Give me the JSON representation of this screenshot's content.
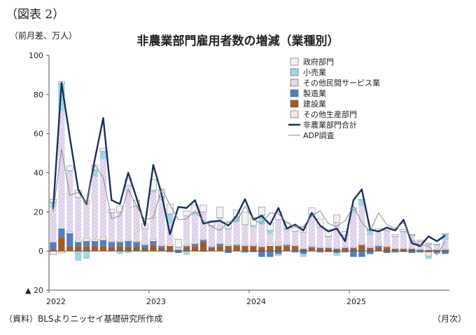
{
  "figure_label": "（図表 2）",
  "unit_label": "（前月差、万人）",
  "source_note": "（資料）BLSよりニッセイ基礎研究所作成",
  "x_unit_label": "（月次）",
  "chart_data": {
    "type": "bar",
    "stacked": true,
    "title": "非農業部門雇用者数の増減（業種別）",
    "ylim": [
      -20,
      100
    ],
    "yticks": [
      -20,
      0,
      20,
      40,
      60,
      80,
      100
    ],
    "ytick_labels": [
      "▲ 20",
      "0",
      "20",
      "40",
      "60",
      "80",
      "100"
    ],
    "x_tick_labels": [
      {
        "label": "2022",
        "index": 0
      },
      {
        "label": "2023",
        "index": 12
      },
      {
        "label": "2024",
        "index": 24
      },
      {
        "label": "2025",
        "index": 36
      }
    ],
    "grid": false,
    "legend_position": "top-right",
    "series": [
      {
        "name": "政府部門",
        "kind": "bar",
        "color": "#f2f2f2",
        "values": [
          1.5,
          1.0,
          2.5,
          3.5,
          1.5,
          2.5,
          1.5,
          2.0,
          3.0,
          3.5,
          3.0,
          2.5,
          5.5,
          3.5,
          5.0,
          4.0,
          2.5,
          4.0,
          3.5,
          2.5,
          5.5,
          3.5,
          3.5,
          6.5,
          4.0,
          4.0,
          4.0,
          4.0,
          3.0,
          2.0,
          2.5,
          3.0,
          4.5,
          3.5,
          4.0,
          2.0,
          0.5,
          0.5,
          0.5,
          1.0,
          1.0,
          1.0,
          1.0,
          0.5,
          0.5,
          0.5,
          0.5,
          0.5
        ]
      },
      {
        "name": "小売業",
        "kind": "bar",
        "color": "#9fd6e2",
        "values": [
          2.5,
          14.0,
          0.5,
          -5.0,
          -4.0,
          3.5,
          4.0,
          0.5,
          -1.5,
          -1.0,
          0.5,
          -0.5,
          1.0,
          2.0,
          5.0,
          0.5,
          -2.0,
          1.0,
          -0.5,
          0.5,
          0.5,
          0.5,
          2.5,
          -0.5,
          1.0,
          5.0,
          2.0,
          -1.0,
          1.0,
          -0.5,
          -1.5,
          1.5,
          -0.5,
          0.5,
          -1.5,
          -0.5,
          2.0,
          3.0,
          2.5,
          0.5,
          0.5,
          -0.5,
          0.5,
          0.5,
          -0.5,
          -1.5,
          -0.5,
          3.0
        ]
      },
      {
        "name": "その他民間サービス業",
        "kind": "bar",
        "color": "#ddd2ec",
        "values": [
          18.0,
          60.0,
          30.5,
          22.0,
          18.0,
          32.0,
          40.0,
          14.0,
          15.0,
          28.0,
          17.5,
          8.0,
          24.0,
          23.0,
          10.5,
          0.5,
          15.0,
          14.5,
          14.0,
          10.0,
          12.5,
          8.0,
          11.5,
          10.5,
          9.0,
          11.0,
          5.0,
          13.0,
          7.0,
          7.0,
          8.0,
          15.0,
          10.0,
          5.0,
          13.0,
          6.0,
          17.5,
          19.5,
          6.0,
          7.0,
          7.5,
          6.0,
          8.0,
          6.0,
          4.0,
          3.0,
          2.0,
          4.5
        ]
      },
      {
        "name": "製造業",
        "kind": "bar",
        "color": "#4f7fc0",
        "values": [
          3.5,
          4.5,
          6.5,
          2.0,
          2.5,
          2.5,
          3.0,
          2.5,
          2.0,
          3.0,
          2.5,
          1.5,
          2.0,
          1.0,
          -0.5,
          -1.0,
          0.5,
          1.0,
          1.0,
          0.5,
          1.0,
          -1.0,
          0.5,
          -0.5,
          -0.5,
          -3.0,
          -3.0,
          -1.5,
          0.5,
          -0.5,
          -1.5,
          0.5,
          -0.5,
          -0.5,
          -1.0,
          -0.5,
          -3.0,
          -3.0,
          -1.5,
          1.0,
          -1.0,
          -0.5,
          -0.5,
          -1.0,
          -0.5,
          -0.5,
          -1.0,
          -1.5
        ]
      },
      {
        "name": "建設業",
        "kind": "bar",
        "color": "#a85a23",
        "values": [
          1.0,
          7.0,
          2.5,
          2.5,
          2.5,
          2.5,
          2.5,
          2.0,
          2.5,
          2.0,
          2.0,
          1.5,
          3.0,
          1.5,
          2.5,
          0.5,
          2.0,
          2.5,
          4.5,
          1.5,
          2.5,
          2.5,
          2.5,
          2.5,
          2.5,
          2.0,
          2.5,
          2.5,
          2.5,
          2.5,
          1.0,
          1.5,
          1.5,
          1.5,
          1.0,
          1.5,
          1.5,
          3.0,
          1.5,
          1.5,
          2.0,
          1.0,
          1.0,
          1.0,
          0.5,
          0.5,
          0.5,
          0.5
        ]
      },
      {
        "name": "その他生産部門",
        "kind": "bar",
        "color": "#fbe6da",
        "values": [
          -2.0,
          -1.0,
          1.0,
          1.0,
          1.5,
          1.0,
          1.5,
          0.5,
          0.5,
          0.5,
          0.5,
          0.5,
          1.0,
          0.5,
          1.0,
          0.5,
          0.5,
          0.5,
          0.5,
          0.5,
          0.5,
          0.5,
          0.5,
          0.5,
          0.5,
          0.5,
          1.0,
          0.5,
          0.5,
          0.5,
          0.5,
          0.5,
          0.5,
          0.5,
          0.5,
          0.5,
          0.5,
          0.5,
          0.5,
          0.5,
          0.5,
          0.5,
          0.5,
          0.5,
          0.5,
          -2.0,
          0.5,
          0.5
        ]
      },
      {
        "name": "非農業部門合計",
        "kind": "line",
        "color": "#1c2f5c",
        "values": [
          21.5,
          86.0,
          58.0,
          31.5,
          24.0,
          47.0,
          68.0,
          26.0,
          24.0,
          40.0,
          27.0,
          13.0,
          44.0,
          29.0,
          8.5,
          22.5,
          22.0,
          26.0,
          14.0,
          15.0,
          15.5,
          13.0,
          18.0,
          26.5,
          16.0,
          18.0,
          13.5,
          22.0,
          11.5,
          13.5,
          10.5,
          19.5,
          13.0,
          10.0,
          11.5,
          5.0,
          26.0,
          31.5,
          11.0,
          10.0,
          12.0,
          10.5,
          16.0,
          4.0,
          2.5,
          7.5,
          5.0,
          8.0
        ]
      },
      {
        "name": "ADP調査",
        "kind": "line",
        "color": "#888888",
        "values": [
          20.0,
          52.0,
          28.5,
          30.0,
          24.5,
          44.0,
          37.5,
          16.5,
          18.0,
          31.5,
          23.0,
          16.0,
          17.0,
          32.0,
          23.5,
          16.0,
          16.5,
          20.5,
          15.5,
          12.5,
          10.5,
          15.0,
          15.0,
          23.0,
          16.0,
          14.0,
          19.5,
          19.0,
          14.5,
          12.5,
          12.5,
          18.0,
          20.5,
          14.0,
          12.5,
          15.5,
          23.0,
          14.5,
          10.0,
          19.5,
          13.5,
          11.5,
          14.5,
          5.5,
          3.0,
          2.5,
          -2.0,
          5.0
        ]
      }
    ]
  }
}
